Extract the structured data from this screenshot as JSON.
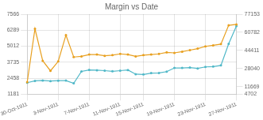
{
  "chart_data": {
    "type": "line",
    "title": "Margin vs Date",
    "categories": [
      "30-Oct-1911",
      null,
      null,
      null,
      "3-Nov-1911",
      null,
      null,
      null,
      "7-Nov-1911",
      null,
      null,
      null,
      "11-Nov-1911",
      null,
      null,
      "15-Nov-1911",
      null,
      null,
      null,
      "19-Nov-1911",
      null,
      null,
      null,
      "23-Nov-1911",
      null,
      null,
      null,
      "27-Nov-1911"
    ],
    "series": [
      {
        "color": "#e8a020",
        "marker": "circle",
        "values": [
          2150,
          6400,
          3850,
          3050,
          3800,
          5900,
          4150,
          4200,
          4350,
          4350,
          4250,
          4300,
          4400,
          4350,
          4200,
          4300,
          4350,
          4400,
          4520,
          4480,
          4580,
          4700,
          4820,
          5000,
          5080,
          5180,
          6680,
          6750
        ]
      },
      {
        "color": "#50b8c8",
        "marker": "circle",
        "values": [
          2100,
          2250,
          2280,
          2230,
          2260,
          2270,
          2050,
          3000,
          3120,
          3100,
          3060,
          3010,
          3060,
          3110,
          2780,
          2760,
          2870,
          2880,
          2980,
          3280,
          3280,
          3310,
          3240,
          3360,
          3390,
          3480,
          5200,
          6620
        ]
      }
    ],
    "ylim": [
      1181,
      7566
    ],
    "yticks": [
      1181,
      2458,
      3735,
      5012,
      6289,
      7566
    ],
    "y2lim": [
      4702,
      77153
    ],
    "y2ticks": [
      4702,
      11669,
      28040,
      44411,
      60782,
      77153
    ],
    "grid": true
  }
}
